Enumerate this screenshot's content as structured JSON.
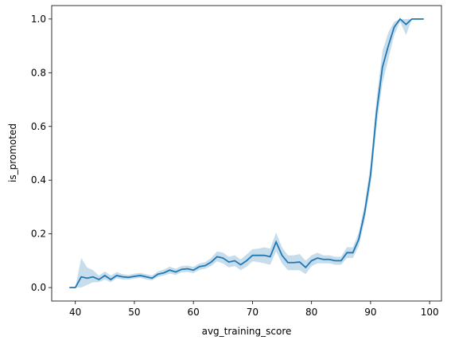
{
  "chart_data": {
    "type": "line",
    "xlabel": "avg_training_score",
    "ylabel": "is_promoted",
    "x": [
      39,
      40,
      41,
      42,
      43,
      44,
      45,
      46,
      47,
      48,
      49,
      50,
      51,
      52,
      53,
      54,
      55,
      56,
      57,
      58,
      59,
      60,
      61,
      62,
      63,
      64,
      65,
      66,
      67,
      68,
      69,
      70,
      71,
      72,
      73,
      74,
      75,
      76,
      77,
      78,
      79,
      80,
      81,
      82,
      83,
      84,
      85,
      86,
      87,
      88,
      89,
      90,
      91,
      92,
      93,
      94,
      95,
      96,
      97,
      98,
      99
    ],
    "series": [
      {
        "color": "#1f77b4",
        "values": [
          0,
          0,
          0.04,
          0.035,
          0.04,
          0.03,
          0.045,
          0.03,
          0.045,
          0.04,
          0.038,
          0.042,
          0.045,
          0.04,
          0.035,
          0.05,
          0.055,
          0.065,
          0.058,
          0.068,
          0.07,
          0.065,
          0.078,
          0.082,
          0.095,
          0.115,
          0.11,
          0.095,
          0.1,
          0.085,
          0.1,
          0.12,
          0.12,
          0.12,
          0.115,
          0.17,
          0.12,
          0.093,
          0.093,
          0.095,
          0.075,
          0.1,
          0.11,
          0.105,
          0.105,
          0.1,
          0.1,
          0.13,
          0.13,
          0.18,
          0.28,
          0.42,
          0.65,
          0.82,
          0.9,
          0.97,
          1.0,
          0.98,
          1.0,
          1.0,
          1.0
        ],
        "lower": [
          0,
          0,
          0,
          0.01,
          0.02,
          0.02,
          0.03,
          0.02,
          0.035,
          0.03,
          0.03,
          0.033,
          0.036,
          0.03,
          0.027,
          0.04,
          0.045,
          0.052,
          0.047,
          0.057,
          0.058,
          0.054,
          0.066,
          0.07,
          0.08,
          0.098,
          0.09,
          0.075,
          0.08,
          0.065,
          0.078,
          0.098,
          0.095,
          0.09,
          0.085,
          0.135,
          0.09,
          0.065,
          0.065,
          0.065,
          0.05,
          0.08,
          0.09,
          0.09,
          0.09,
          0.085,
          0.085,
          0.11,
          0.11,
          0.155,
          0.25,
          0.38,
          0.6,
          0.76,
          0.85,
          0.94,
          0.99,
          0.94,
          1,
          1,
          1
        ],
        "upper": [
          0,
          0,
          0.11,
          0.075,
          0.065,
          0.045,
          0.06,
          0.045,
          0.058,
          0.05,
          0.047,
          0.052,
          0.055,
          0.05,
          0.045,
          0.06,
          0.067,
          0.078,
          0.07,
          0.08,
          0.082,
          0.077,
          0.09,
          0.095,
          0.11,
          0.135,
          0.13,
          0.115,
          0.12,
          0.105,
          0.123,
          0.143,
          0.145,
          0.15,
          0.145,
          0.205,
          0.15,
          0.12,
          0.12,
          0.125,
          0.1,
          0.12,
          0.13,
          0.12,
          0.12,
          0.115,
          0.115,
          0.15,
          0.15,
          0.205,
          0.31,
          0.46,
          0.7,
          0.88,
          0.95,
          0.99,
          1.0,
          1.0,
          1,
          1,
          1
        ]
      }
    ],
    "xlim": [
      36.0,
      102.0
    ],
    "ylim": [
      -0.05,
      1.05
    ],
    "xticks": [
      40,
      50,
      60,
      70,
      80,
      90,
      100
    ],
    "yticks": [
      {
        "value": 0,
        "label": "0.0"
      },
      {
        "value": 0.2,
        "label": "0.2"
      },
      {
        "value": 0.4,
        "label": "0.4"
      },
      {
        "value": 0.6,
        "label": "0.6"
      },
      {
        "value": 0.8,
        "label": "0.8"
      },
      {
        "value": 1,
        "label": "1.0"
      }
    ]
  }
}
